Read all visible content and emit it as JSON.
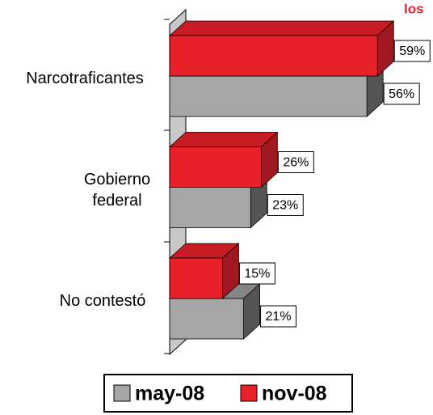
{
  "chart_data": {
    "type": "bar3d_horizontal",
    "title": "los",
    "categories": [
      "Narcotraficantes",
      "Gobierno federal",
      "No contestó"
    ],
    "series": [
      {
        "name": "may-08",
        "color": "#a6a6a6",
        "values": [
          56,
          23,
          21
        ],
        "value_labels": [
          "56%",
          "23%",
          "21%"
        ]
      },
      {
        "name": "nov-08",
        "color": "#e8202a",
        "values": [
          59,
          26,
          15
        ],
        "value_labels": [
          "59%",
          "26%",
          "15%"
        ]
      }
    ],
    "legend": "bottom"
  }
}
